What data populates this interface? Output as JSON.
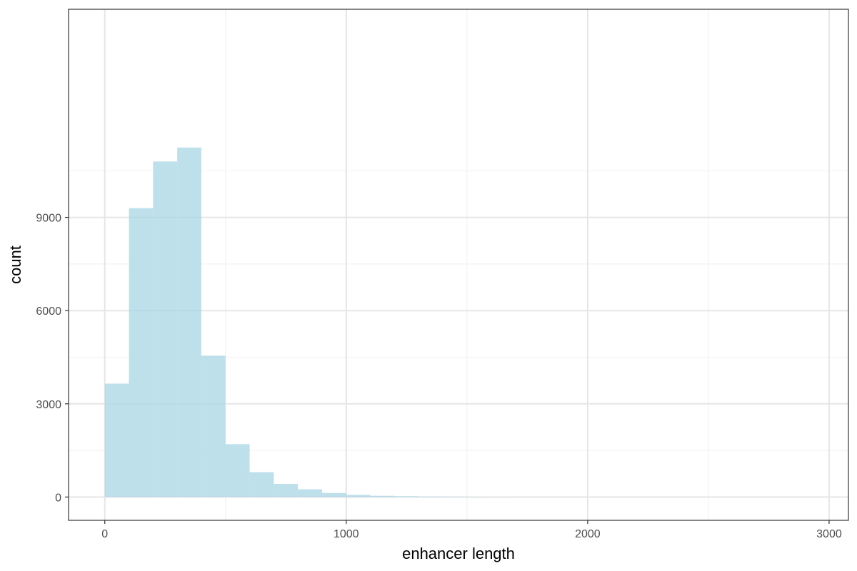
{
  "chart_data": {
    "type": "bar",
    "subtype": "histogram",
    "xlabel": "enhancer length",
    "ylabel": "count",
    "xlim": [
      -150,
      3080
    ],
    "ylim": [
      -750,
      15700
    ],
    "x_ticks": [
      0,
      1000,
      2000,
      3000
    ],
    "y_ticks": [
      0,
      3000,
      6000,
      9000
    ],
    "x_tick_labels": [
      "0",
      "1000",
      "2000",
      "3000"
    ],
    "y_tick_labels": [
      "0",
      "3000",
      "6000",
      "9000"
    ],
    "grid": true,
    "legend": "none",
    "bar_color": "#ADD8E6",
    "bar_opacity": 0.8,
    "bin_width": 100,
    "bins": [
      {
        "start": 0,
        "end": 100,
        "count": 3650
      },
      {
        "start": 100,
        "end": 200,
        "count": 9300
      },
      {
        "start": 200,
        "end": 300,
        "count": 10800
      },
      {
        "start": 300,
        "end": 400,
        "count": 11250
      },
      {
        "start": 400,
        "end": 500,
        "count": 4550
      },
      {
        "start": 500,
        "end": 600,
        "count": 1700
      },
      {
        "start": 600,
        "end": 700,
        "count": 800
      },
      {
        "start": 700,
        "end": 800,
        "count": 420
      },
      {
        "start": 800,
        "end": 900,
        "count": 250
      },
      {
        "start": 900,
        "end": 1000,
        "count": 130
      },
      {
        "start": 1000,
        "end": 1100,
        "count": 70
      },
      {
        "start": 1100,
        "end": 1200,
        "count": 40
      },
      {
        "start": 1200,
        "end": 1300,
        "count": 25
      },
      {
        "start": 1300,
        "end": 1400,
        "count": 15
      },
      {
        "start": 1400,
        "end": 1500,
        "count": 10
      },
      {
        "start": 1500,
        "end": 1600,
        "count": 7
      },
      {
        "start": 1600,
        "end": 1700,
        "count": 5
      },
      {
        "start": 1700,
        "end": 1800,
        "count": 3
      },
      {
        "start": 1800,
        "end": 1900,
        "count": 2
      },
      {
        "start": 1900,
        "end": 2000,
        "count": 2
      },
      {
        "start": 2000,
        "end": 2100,
        "count": 1
      },
      {
        "start": 2100,
        "end": 2200,
        "count": 1
      },
      {
        "start": 2200,
        "end": 2300,
        "count": 1
      },
      {
        "start": 2300,
        "end": 2400,
        "count": 1
      },
      {
        "start": 2400,
        "end": 2500,
        "count": 1
      },
      {
        "start": 2500,
        "end": 2600,
        "count": 1
      },
      {
        "start": 2600,
        "end": 2700,
        "count": 1
      },
      {
        "start": 2700,
        "end": 2800,
        "count": 1
      },
      {
        "start": 2800,
        "end": 2900,
        "count": 1
      },
      {
        "start": 2900,
        "end": 3000,
        "count": 1
      }
    ]
  }
}
